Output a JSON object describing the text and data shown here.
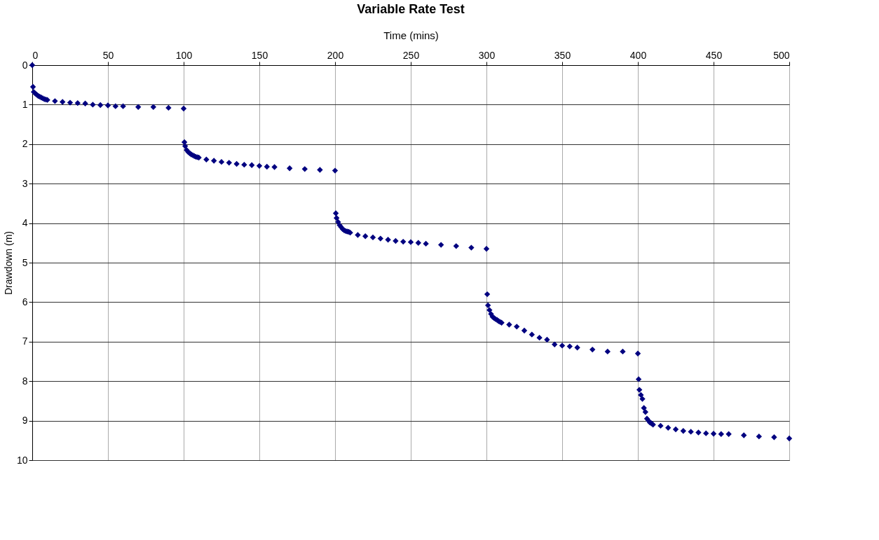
{
  "chart_data": {
    "type": "scatter",
    "title": "Variable Rate Test",
    "xlabel": "Time (mins)",
    "ylabel": "Drawdown (m)",
    "x": [
      0,
      0.5,
      1,
      2,
      3,
      4,
      5,
      6,
      7,
      8,
      9,
      10,
      15,
      20,
      25,
      30,
      35,
      40,
      45,
      50,
      55,
      60,
      70,
      80,
      90,
      100,
      100.5,
      101,
      102,
      103,
      104,
      105,
      106,
      107,
      108,
      109,
      110,
      115,
      120,
      125,
      130,
      135,
      140,
      145,
      150,
      155,
      160,
      170,
      180,
      190,
      200,
      200.5,
      201,
      202,
      203,
      204,
      205,
      206,
      207,
      208,
      209,
      210,
      215,
      220,
      225,
      230,
      235,
      240,
      245,
      250,
      255,
      260,
      270,
      280,
      290,
      300,
      300.5,
      301,
      302,
      303,
      304,
      305,
      306,
      307,
      308,
      309,
      310,
      315,
      320,
      325,
      330,
      335,
      340,
      345,
      350,
      355,
      360,
      370,
      380,
      390,
      400,
      400.5,
      401,
      402,
      403,
      404,
      405,
      406,
      407,
      408,
      409,
      410,
      415,
      420,
      425,
      430,
      435,
      440,
      445,
      450,
      455,
      460,
      470,
      480,
      490,
      500
    ],
    "series": [
      {
        "color": "#000080",
        "values": [
          0,
          0.55,
          0.68,
          0.72,
          0.75,
          0.78,
          0.8,
          0.82,
          0.84,
          0.86,
          0.87,
          0.88,
          0.91,
          0.93,
          0.95,
          0.96,
          0.97,
          1.0,
          1.01,
          1.02,
          1.04,
          1.04,
          1.06,
          1.06,
          1.08,
          1.1,
          1.95,
          2.05,
          2.15,
          2.2,
          2.23,
          2.26,
          2.28,
          2.3,
          2.32,
          2.33,
          2.34,
          2.39,
          2.42,
          2.45,
          2.47,
          2.5,
          2.52,
          2.53,
          2.55,
          2.57,
          2.58,
          2.61,
          2.63,
          2.65,
          2.67,
          3.75,
          3.87,
          3.97,
          4.05,
          4.1,
          4.15,
          4.18,
          4.2,
          4.21,
          4.22,
          4.24,
          4.3,
          4.33,
          4.36,
          4.39,
          4.42,
          4.45,
          4.47,
          4.48,
          4.5,
          4.52,
          4.55,
          4.58,
          4.62,
          4.65,
          5.8,
          6.08,
          6.2,
          6.3,
          6.37,
          6.4,
          6.43,
          6.45,
          6.48,
          6.5,
          6.52,
          6.57,
          6.62,
          6.72,
          6.82,
          6.9,
          6.95,
          7.07,
          7.1,
          7.12,
          7.15,
          7.2,
          7.25,
          7.25,
          7.3,
          7.95,
          8.22,
          8.35,
          8.45,
          8.68,
          8.78,
          8.95,
          9.0,
          9.05,
          9.07,
          9.1,
          9.13,
          9.18,
          9.22,
          9.26,
          9.28,
          9.3,
          9.32,
          9.33,
          9.34,
          9.34,
          9.37,
          9.4,
          9.42,
          9.45
        ]
      }
    ],
    "xlim": [
      0,
      500
    ],
    "xticks": [
      0,
      50,
      100,
      150,
      200,
      250,
      300,
      350,
      400,
      450,
      500
    ],
    "ylim": [
      10,
      0
    ],
    "yticks": [
      0,
      1,
      2,
      3,
      4,
      5,
      6,
      7,
      8,
      9,
      10
    ],
    "grid": true,
    "marker": "diamond"
  }
}
